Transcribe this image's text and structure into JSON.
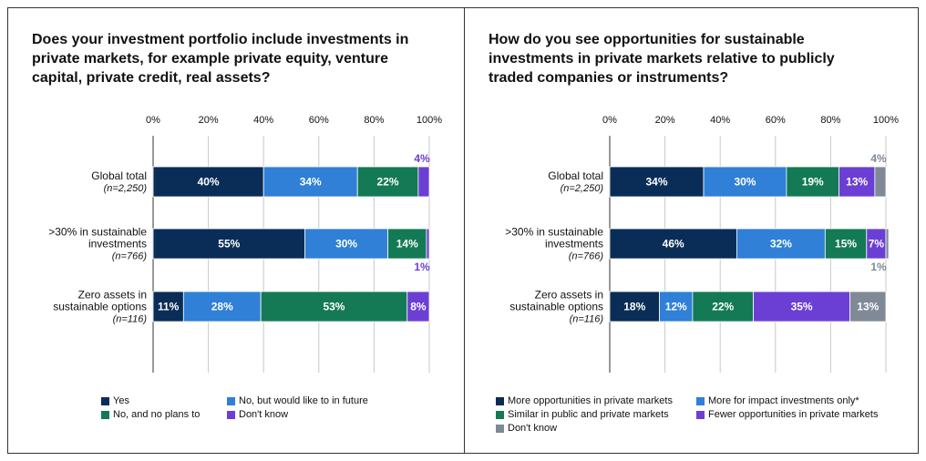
{
  "chart_data": [
    {
      "type": "bar",
      "orientation": "horizontal",
      "stacked": true,
      "title": "Does your investment portfolio include investments in private markets, for example private equity, venture capital, private credit, real assets?",
      "xlim": [
        0,
        100
      ],
      "ticks": [
        "0%",
        "20%",
        "40%",
        "60%",
        "80%",
        "100%"
      ],
      "grid": true,
      "legend_position": "bottom",
      "categories": [
        {
          "label": [
            ">30% in sustainable",
            "investments"
          ],
          "n": "(n=766)"
        },
        {
          "label": [
            "Global total"
          ],
          "n": "(n=2,250)"
        },
        {
          "label": [
            "Zero assets in",
            "sustainable options"
          ],
          "n": "(n=116)"
        }
      ],
      "series": [
        {
          "name": "Yes",
          "color": "#0a2d57",
          "values": [
            55,
            40,
            11
          ],
          "labels": [
            "55%",
            "40%",
            "11%"
          ]
        },
        {
          "name": "No, but would like to in future",
          "color": "#2f80d6",
          "values": [
            30,
            34,
            28
          ],
          "labels": [
            "30%",
            "34%",
            "28%"
          ]
        },
        {
          "name": "No, and no plans to",
          "color": "#137a55",
          "values": [
            14,
            22,
            53
          ],
          "labels": [
            "14%",
            "22%",
            "53%"
          ]
        },
        {
          "name": "Don't know",
          "color": "#6b3fd4",
          "values": [
            1,
            4,
            8
          ],
          "labels": [
            "1%",
            "4%",
            "8%"
          ]
        }
      ]
    },
    {
      "type": "bar",
      "orientation": "horizontal",
      "stacked": true,
      "title": "How do you see opportunities for sustainable investments in private markets relative to publicly traded companies or instruments?",
      "xlim": [
        0,
        100
      ],
      "ticks": [
        "0%",
        "20%",
        "40%",
        "60%",
        "80%",
        "100%"
      ],
      "grid": true,
      "legend_position": "bottom",
      "categories": [
        {
          "label": [
            ">30% in sustainable",
            "investments"
          ],
          "n": "(n=766)"
        },
        {
          "label": [
            "Global total"
          ],
          "n": "(n=2,250)"
        },
        {
          "label": [
            "Zero assets in",
            "sustainable options"
          ],
          "n": "(n=116)"
        }
      ],
      "series": [
        {
          "name": "More opportunities in private markets",
          "color": "#0a2d57",
          "values": [
            46,
            34,
            18
          ],
          "labels": [
            "46%",
            "34%",
            "18%"
          ]
        },
        {
          "name": "More for impact investments only*",
          "color": "#2f80d6",
          "values": [
            32,
            30,
            12
          ],
          "labels": [
            "32%",
            "30%",
            "12%"
          ]
        },
        {
          "name": "Similar in public and private markets",
          "color": "#137a55",
          "values": [
            15,
            19,
            22
          ],
          "labels": [
            "15%",
            "19%",
            "22%"
          ]
        },
        {
          "name": "Fewer opportunities in private markets",
          "color": "#6b3fd4",
          "values": [
            7,
            13,
            35
          ],
          "labels": [
            "7%",
            "13%",
            "35%"
          ]
        },
        {
          "name": "Don't know",
          "color": "#7f8a96",
          "values": [
            1,
            4,
            13
          ],
          "labels": [
            "1%",
            "4%",
            "13%"
          ]
        }
      ]
    }
  ]
}
